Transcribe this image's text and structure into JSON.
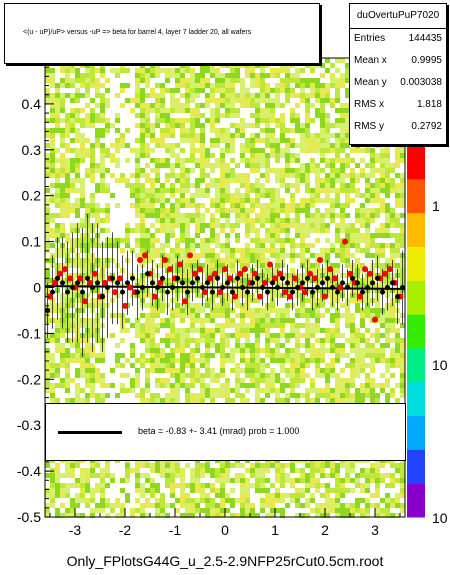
{
  "title": "<(u - uP)/uP>  versus  -uP => beta for barrel 4, layer 7 ladder 20, all wafers",
  "stats": {
    "name": "duOvertuPuP7020",
    "rows": [
      {
        "key": "Entries",
        "value": "144435"
      },
      {
        "key": "Mean x",
        "value": "0.9995"
      },
      {
        "key": "Mean y",
        "value": "0.003038"
      },
      {
        "key": "RMS x",
        "value": "1.818"
      },
      {
        "key": "RMS y",
        "value": "0.2792"
      }
    ]
  },
  "fit": {
    "text": "beta =    -0.83  +-  3.41 (mrad) prob = 1.000",
    "slope_mrad": -0.83,
    "error_mrad": 3.41,
    "prob": 1.0
  },
  "footer": "Only_FPlotsG44G_u_2.5-2.9NFP25rCut0.5cm.root",
  "chart_data": {
    "type": "scatter",
    "xlim": [
      -3.6,
      3.6
    ],
    "ylim": [
      -0.5,
      0.5
    ],
    "x_ticks": [
      "-3",
      "-2",
      "-1",
      "0",
      "1",
      "2",
      "3"
    ],
    "x_tick_values": [
      -3,
      -2,
      -1,
      0,
      1,
      2,
      3
    ],
    "y_ticks": [
      "-0.5",
      "-0.4",
      "-0.3",
      "-0.2",
      "-0.1",
      "0",
      "0.1",
      "0.2",
      "0.3",
      "0.4"
    ],
    "y_tick_values": [
      -0.5,
      -0.4,
      -0.3,
      -0.2,
      -0.1,
      0,
      0.1,
      0.2,
      0.3,
      0.4
    ],
    "colorbar": {
      "labels": [
        "1",
        "10",
        "10"
      ],
      "scale": "log",
      "colors": [
        "#8800cc",
        "#2244ff",
        "#00aaff",
        "#00dddd",
        "#00ee88",
        "#33ee00",
        "#aaee00",
        "#eeee00",
        "#ffbb00",
        "#ff5500",
        "#ff0000"
      ]
    },
    "histogram_colors": [
      "#d8f070",
      "#bde83a",
      "#8fd820",
      "#e8e850"
    ],
    "series": [
      {
        "name": "red",
        "color": "#ff0000",
        "x": [
          -3.5,
          -3.4,
          -3.3,
          -3.2,
          -3.1,
          -3.0,
          -2.9,
          -2.8,
          -2.7,
          -2.6,
          -2.5,
          -2.4,
          -2.3,
          -2.2,
          -2.1,
          -2.0,
          -1.9,
          -1.8,
          -1.7,
          -1.6,
          -1.5,
          -1.4,
          -1.3,
          -1.2,
          -1.1,
          -1.0,
          -0.9,
          -0.8,
          -0.7,
          -0.6,
          -0.5,
          -0.4,
          -0.3,
          -0.2,
          -0.1,
          0.0,
          0.1,
          0.2,
          0.3,
          0.4,
          0.5,
          0.6,
          0.7,
          0.8,
          0.9,
          1.0,
          1.1,
          1.2,
          1.3,
          1.4,
          1.5,
          1.6,
          1.7,
          1.8,
          1.9,
          2.0,
          2.1,
          2.2,
          2.3,
          2.4,
          2.5,
          2.6,
          2.7,
          2.8,
          2.9,
          3.0,
          3.1,
          3.2,
          3.3,
          3.4,
          3.5
        ],
        "y": [
          -0.02,
          0.01,
          0.03,
          0.04,
          0.02,
          0.0,
          0.02,
          -0.03,
          0.01,
          0.03,
          -0.02,
          0.01,
          0.02,
          -0.01,
          0.02,
          -0.04,
          0.0,
          -0.01,
          0.06,
          0.07,
          0.03,
          -0.02,
          0.01,
          0.06,
          0.04,
          0.02,
          0.05,
          -0.03,
          0.07,
          0.03,
          0.04,
          -0.01,
          0.02,
          0.03,
          -0.01,
          0.04,
          0.02,
          -0.02,
          0.03,
          0.04,
          0.01,
          0.03,
          -0.02,
          0.01,
          0.05,
          0.02,
          0.03,
          -0.01,
          -0.02,
          0.02,
          0.0,
          -0.01,
          0.03,
          0.02,
          0.06,
          -0.02,
          0.04,
          0.02,
          0.0,
          0.1,
          0.03,
          0.01,
          -0.02,
          0.04,
          0.03,
          -0.07,
          0.02,
          0.03,
          0.04,
          0.01,
          -0.02
        ]
      },
      {
        "name": "black",
        "color": "#000000",
        "x": [
          -3.55,
          -3.45,
          -3.35,
          -3.25,
          -3.15,
          -3.05,
          -2.95,
          -2.85,
          -2.75,
          -2.65,
          -2.55,
          -2.45,
          -2.35,
          -2.25,
          -2.15,
          -2.05,
          -1.95,
          -1.85,
          -1.75,
          -1.65,
          -1.55,
          -1.45,
          -1.35,
          -1.25,
          -1.15,
          -1.05,
          -0.95,
          -0.85,
          -0.75,
          -0.65,
          -0.55,
          -0.45,
          -0.35,
          -0.25,
          -0.15,
          -0.05,
          0.05,
          0.15,
          0.25,
          0.35,
          0.45,
          0.55,
          0.65,
          0.75,
          0.85,
          0.95,
          1.05,
          1.15,
          1.25,
          1.35,
          1.45,
          1.55,
          1.65,
          1.75,
          1.85,
          1.95,
          2.05,
          2.15,
          2.25,
          2.35,
          2.45,
          2.55,
          2.65,
          2.75,
          2.85,
          2.95,
          3.05,
          3.15,
          3.25,
          3.35,
          3.45,
          3.55
        ],
        "y": [
          -0.05,
          -0.01,
          0.02,
          0.01,
          -0.01,
          0.0,
          0.01,
          -0.01,
          0.02,
          0.0,
          0.01,
          -0.02,
          0.0,
          0.02,
          0.01,
          -0.01,
          0.01,
          0.02,
          -0.01,
          0.0,
          0.03,
          0.01,
          0.0,
          0.02,
          -0.01,
          0.0,
          0.02,
          0.01,
          -0.01,
          0.01,
          0.02,
          0.0,
          0.01,
          -0.01,
          0.02,
          0.0,
          0.01,
          -0.01,
          0.02,
          0.0,
          -0.01,
          0.01,
          0.02,
          0.0,
          -0.01,
          0.01,
          0.0,
          0.02,
          0.01,
          -0.01,
          0.0,
          0.01,
          0.02,
          -0.01,
          0.0,
          0.01,
          0.02,
          0.0,
          -0.01,
          0.01,
          0.0,
          0.02,
          0.01,
          -0.01,
          0.0,
          0.01,
          0.02,
          -0.01,
          0.0,
          0.01,
          -0.02,
          0.0
        ],
        "err": [
          0.06,
          0.08,
          0.09,
          0.1,
          0.11,
          0.12,
          0.13,
          0.14,
          0.14,
          0.14,
          0.13,
          0.12,
          0.11,
          0.1,
          0.09,
          0.08,
          0.07,
          0.06,
          0.06,
          0.05,
          0.05,
          0.05,
          0.05,
          0.05,
          0.05,
          0.05,
          0.05,
          0.05,
          0.05,
          0.04,
          0.04,
          0.04,
          0.04,
          0.04,
          0.04,
          0.04,
          0.04,
          0.04,
          0.04,
          0.04,
          0.04,
          0.04,
          0.04,
          0.04,
          0.04,
          0.04,
          0.04,
          0.04,
          0.04,
          0.04,
          0.04,
          0.04,
          0.04,
          0.04,
          0.04,
          0.04,
          0.04,
          0.04,
          0.04,
          0.04,
          0.04,
          0.04,
          0.04,
          0.04,
          0.04,
          0.05,
          0.05,
          0.05,
          0.05,
          0.05,
          0.06,
          0.08
        ]
      }
    ],
    "fit_line": {
      "slope": -0.00083,
      "intercept": 0.0
    }
  }
}
